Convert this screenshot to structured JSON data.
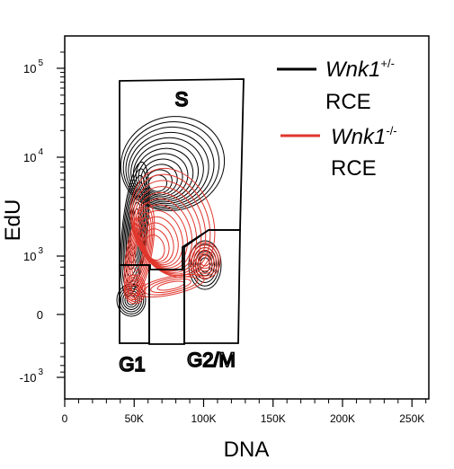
{
  "chart_data": {
    "type": "contour",
    "xlabel": "DNA",
    "ylabel": "EdU",
    "x_ticks": [
      "0",
      "50K",
      "100K",
      "150K",
      "200K",
      "250K"
    ],
    "x_tick_values": [
      0,
      50000,
      100000,
      150000,
      200000,
      250000
    ],
    "xlim": [
      0,
      262144
    ],
    "y_scale": "biexponential",
    "y_ticks": [
      {
        "value": 100000,
        "base": "10",
        "exp": "5",
        "sign": ""
      },
      {
        "value": 10000,
        "base": "10",
        "exp": "4",
        "sign": ""
      },
      {
        "value": 1000,
        "base": "10",
        "exp": "3",
        "sign": ""
      },
      {
        "value": 0,
        "base": "0",
        "exp": "",
        "sign": ""
      },
      {
        "value": -1000,
        "base": "10",
        "exp": "3",
        "sign": "-"
      }
    ],
    "grid": false,
    "legend_position": "top-right",
    "series": [
      {
        "name_italic": "Wnk1",
        "name_sup": "+/-",
        "name_line2": "RCE",
        "color": "#000000"
      },
      {
        "name_italic": "Wnk1",
        "name_sup": "-/-",
        "name_line2": "RCE",
        "color": "#e0362c"
      }
    ],
    "gates": [
      {
        "label": "S",
        "dna": [
          40000,
          128000
        ],
        "edu": [
          1800,
          75000
        ]
      },
      {
        "label": "G1",
        "dna": [
          40000,
          61000
        ],
        "edu": [
          -600,
          800
        ]
      },
      {
        "label": "G2/M",
        "dna": [
          87000,
          128000
        ],
        "edu": [
          -600,
          1800
        ]
      }
    ]
  }
}
